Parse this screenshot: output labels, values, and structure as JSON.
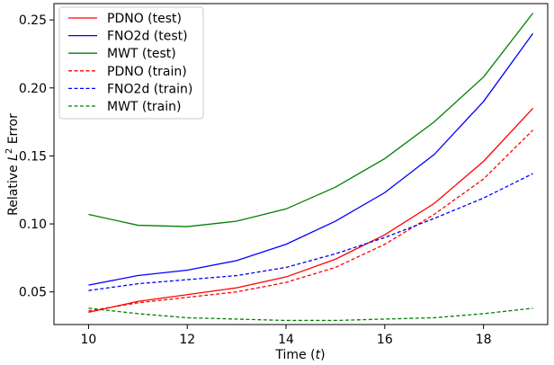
{
  "chart_data": {
    "type": "line",
    "xlabel": {
      "text": "Time (",
      "var": "t",
      "close": ")"
    },
    "ylabel": {
      "prefix": "Relative ",
      "var": "L",
      "sup": "2",
      "suffix": " Error"
    },
    "xlim": [
      9.3,
      19.3
    ],
    "ylim": [
      0.026,
      0.262
    ],
    "xticks": [
      10,
      12,
      14,
      16,
      18
    ],
    "xtick_labels": [
      "10",
      "12",
      "14",
      "16",
      "18"
    ],
    "yticks": [
      0.05,
      0.1,
      0.15,
      0.2,
      0.25
    ],
    "ytick_labels": [
      "0.05",
      "0.10",
      "0.15",
      "0.20",
      "0.25"
    ],
    "grid": false,
    "legend_position": "top-left",
    "x": [
      10,
      11,
      12,
      13,
      14,
      15,
      16,
      17,
      18,
      19
    ],
    "series": [
      {
        "name": "PDNO (test)",
        "color": "#ff0000",
        "dash": "solid",
        "values": [
          0.035,
          0.043,
          0.048,
          0.053,
          0.061,
          0.074,
          0.092,
          0.115,
          0.146,
          0.185
        ]
      },
      {
        "name": "FNO2d (test)",
        "color": "#0000ff",
        "dash": "solid",
        "values": [
          0.055,
          0.062,
          0.066,
          0.073,
          0.085,
          0.102,
          0.123,
          0.151,
          0.19,
          0.24
        ]
      },
      {
        "name": "MWT (test)",
        "color": "#008000",
        "dash": "solid",
        "values": [
          0.107,
          0.099,
          0.098,
          0.102,
          0.111,
          0.127,
          0.148,
          0.175,
          0.208,
          0.255
        ]
      },
      {
        "name": "PDNO (train)",
        "color": "#ff0000",
        "dash": "dashed",
        "values": [
          0.036,
          0.042,
          0.046,
          0.05,
          0.057,
          0.068,
          0.085,
          0.107,
          0.133,
          0.169
        ]
      },
      {
        "name": "FNO2d (train)",
        "color": "#0000ff",
        "dash": "dashed",
        "values": [
          0.051,
          0.056,
          0.059,
          0.062,
          0.068,
          0.078,
          0.09,
          0.104,
          0.119,
          0.137
        ]
      },
      {
        "name": "MWT (train)",
        "color": "#008000",
        "dash": "dashed",
        "values": [
          0.038,
          0.034,
          0.031,
          0.03,
          0.029,
          0.029,
          0.03,
          0.031,
          0.034,
          0.038
        ]
      }
    ]
  }
}
